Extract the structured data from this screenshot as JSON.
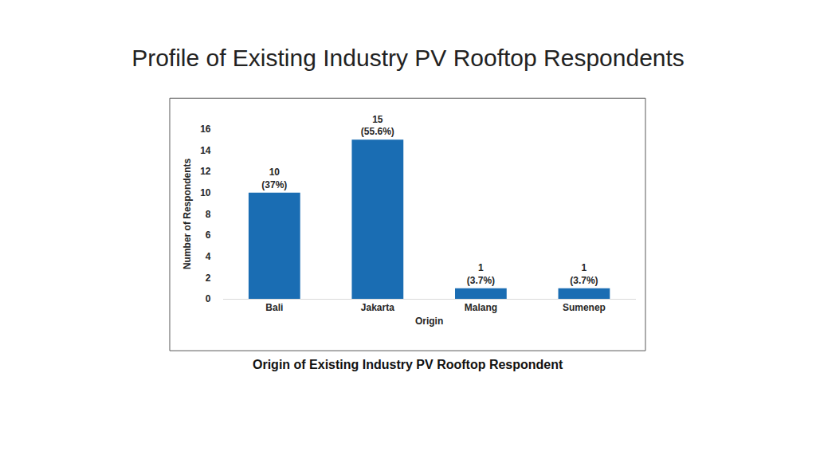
{
  "chart_data": {
    "type": "bar",
    "title": "Profile of Existing Industry PV Rooftop Respondents",
    "caption": "Origin of Existing Industry PV Rooftop Respondent",
    "x_label": "Origin",
    "y_label": "Number of Respondents",
    "categories": [
      "Bali",
      "Jakarta",
      "Malang",
      "Sumenep"
    ],
    "values": [
      10,
      15,
      1,
      1
    ],
    "value_labels": [
      [
        "10",
        "(37%)"
      ],
      [
        "15",
        "(55.6%)"
      ],
      [
        "1",
        "(3.7%)"
      ],
      [
        "1",
        "(3.7%)"
      ]
    ],
    "data_labels": true,
    "color": "#1a6db3",
    "ylim": [
      0,
      16
    ],
    "yticks": [
      0,
      2,
      4,
      6,
      8,
      10,
      12,
      14,
      16
    ],
    "grid": false
  }
}
